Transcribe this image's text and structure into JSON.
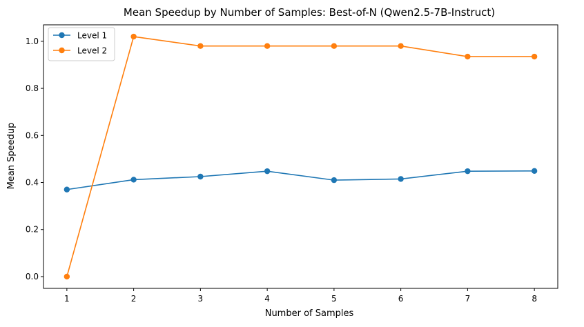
{
  "chart_data": {
    "type": "line",
    "title": "Mean Speedup by Number of Samples: Best-of-N (Qwen2.5-7B-Instruct)",
    "xlabel": "Number of Samples",
    "ylabel": "Mean Speedup",
    "x": [
      1,
      2,
      3,
      4,
      5,
      6,
      7,
      8
    ],
    "xlim": [
      0.65,
      8.35
    ],
    "ylim": [
      -0.05,
      1.07
    ],
    "xticks": [
      1,
      2,
      3,
      4,
      5,
      6,
      7,
      8
    ],
    "yticks": [
      0.0,
      0.2,
      0.4,
      0.6,
      0.8,
      1.0
    ],
    "ytick_labels": [
      "0.0",
      "0.2",
      "0.4",
      "0.6",
      "0.8",
      "1.0"
    ],
    "grid": false,
    "legend_placement": "top-left",
    "series": [
      {
        "name": "Level 1",
        "color": "#1f77b4",
        "marker": "circle",
        "values": [
          0.37,
          0.412,
          0.425,
          0.448,
          0.41,
          0.415,
          0.448,
          0.449
        ]
      },
      {
        "name": "Level 2",
        "color": "#ff7f0e",
        "marker": "circle",
        "values": [
          0.0,
          1.02,
          0.98,
          0.98,
          0.98,
          0.98,
          0.935,
          0.935
        ]
      }
    ]
  }
}
